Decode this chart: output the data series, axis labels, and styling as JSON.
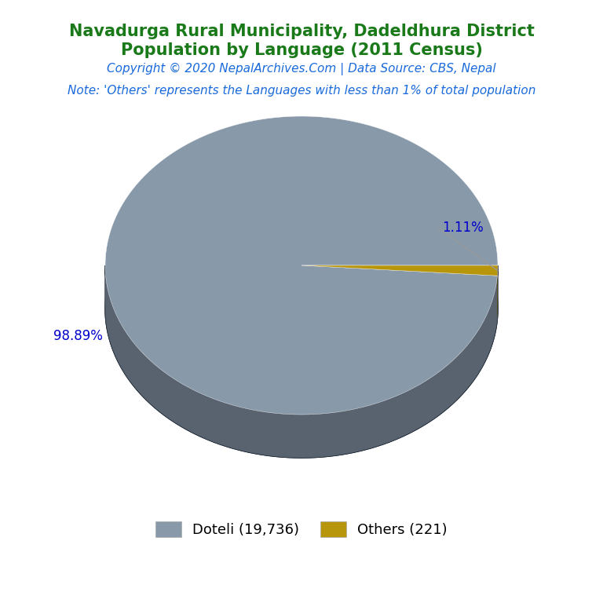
{
  "title_line1": "Navadurga Rural Municipality, Dadeldhura District",
  "title_line2": "Population by Language (2011 Census)",
  "title_color": "#1a7a1a",
  "copyright_text": "Copyright © 2020 NepalArchives.Com | Data Source: CBS, Nepal",
  "copyright_color": "#1a6adb",
  "note_text": "Note: 'Others' represents the Languages with less than 1% of total population",
  "note_color": "#1a6adb",
  "labels": [
    "Doteli",
    "Others"
  ],
  "values": [
    19736,
    221
  ],
  "percentages": [
    "98.89%",
    "1.11%"
  ],
  "colors": [
    "#8899aa",
    "#b8960c"
  ],
  "shadow_color": "#1a2535",
  "legend_labels": [
    "Doteli (19,736)",
    "Others (221)"
  ],
  "background_color": "#ffffff",
  "label_color": "#0000cc",
  "title_fontsize": 15,
  "copyright_fontsize": 11,
  "note_fontsize": 11
}
